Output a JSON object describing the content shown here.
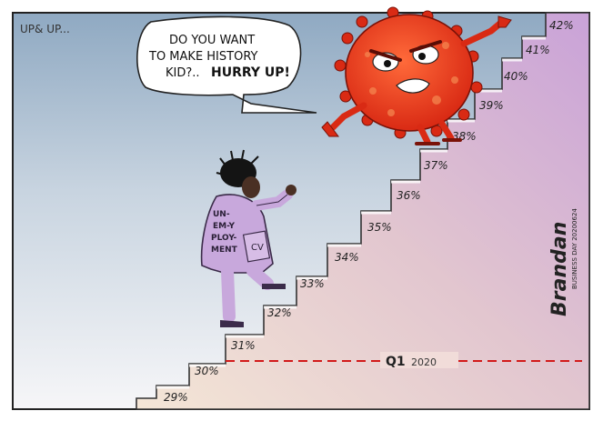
{
  "cartoon": {
    "corner_caption": "UP& UP...",
    "speech_bubble": {
      "line1": "DO YOU WANT",
      "line2": "TO MAKE HISTORY",
      "line3_plain": "KID?..",
      "line3_bold": "HURRY UP!"
    },
    "jacket_text": [
      "UN-",
      "EM-Y",
      "PLOY-",
      "MENT"
    ],
    "cv_label": "CV",
    "steps": [
      "29%",
      "30%",
      "31%",
      "32%",
      "33%",
      "34%",
      "35%",
      "36%",
      "37%",
      "38%",
      "39%",
      "40%",
      "41%",
      "42%"
    ],
    "baseline": {
      "quarter": "Q1",
      "year": "2020"
    },
    "signature": "Brandan",
    "publication": "BUSINESS DAY 20200624",
    "colors": {
      "sky_top": "#9fb6cc",
      "sky_bottom": "#f2f2f4",
      "wall_light": "#f3e2d8",
      "wall_purple": "#caa6d6",
      "virus_red": "#e8391b",
      "jacket": "#c8a8dc",
      "baseline_red": "#d21a1a"
    }
  }
}
